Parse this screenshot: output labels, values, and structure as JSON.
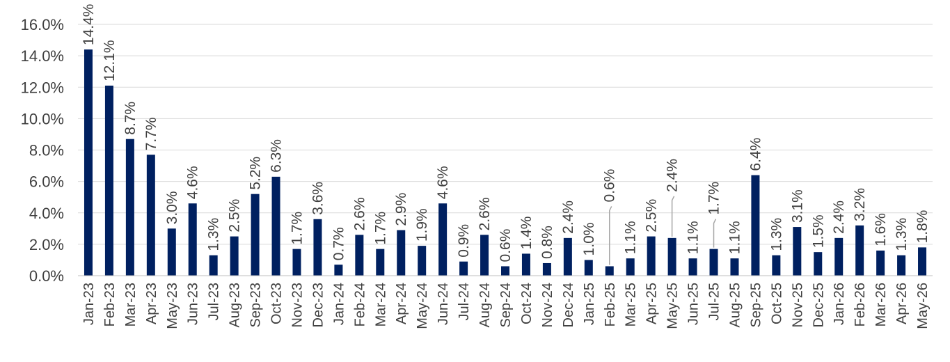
{
  "chart_data": {
    "type": "bar",
    "title": "",
    "xlabel": "",
    "ylabel": "",
    "ylim": [
      0,
      16
    ],
    "yticks": [
      "0.0%",
      "2.0%",
      "4.0%",
      "6.0%",
      "8.0%",
      "10.0%",
      "12.0%",
      "14.0%",
      "16.0%"
    ],
    "grid": true,
    "legend": "none",
    "bar_color": "#002060",
    "categories": [
      "Jan-23",
      "Feb-23",
      "Mar-23",
      "Apr-23",
      "May-23",
      "Jun-23",
      "Jul-23",
      "Aug-23",
      "Sep-23",
      "Oct-23",
      "Nov-23",
      "Dec-23",
      "Jan-24",
      "Feb-24",
      "Mar-24",
      "Apr-24",
      "May-24",
      "Jun-24",
      "Jul-24",
      "Aug-24",
      "Sep-24",
      "Oct-24",
      "Nov-24",
      "Dec-24",
      "Jan-25",
      "Feb-25",
      "Mar-25",
      "Apr-25",
      "May-25",
      "Jun-25",
      "Jul-25",
      "Aug-25",
      "Sep-25",
      "Oct-25",
      "Nov-25",
      "Dec-25",
      "Jan-26",
      "Feb-26",
      "Mar-26",
      "Apr-26",
      "May-26"
    ],
    "values": [
      14.4,
      12.1,
      8.7,
      7.7,
      3.0,
      4.6,
      1.3,
      2.5,
      5.2,
      6.3,
      1.7,
      3.6,
      0.7,
      2.6,
      1.7,
      2.9,
      1.9,
      4.6,
      0.9,
      2.6,
      0.6,
      1.4,
      0.8,
      2.4,
      1.0,
      0.6,
      1.1,
      2.5,
      2.4,
      1.1,
      1.7,
      1.1,
      6.4,
      1.3,
      3.1,
      1.5,
      2.4,
      3.2,
      1.6,
      1.3,
      1.8
    ],
    "data_labels": [
      "14.4%",
      "12.1%",
      "8.7%",
      "7.7%",
      "3.0%",
      "4.6%",
      "1.3%",
      "2.5%",
      "5.2%",
      "6.3%",
      "1.7%",
      "3.6%",
      "0.7%",
      "2.6%",
      "1.7%",
      "2.9%",
      "1.9%",
      "4.6%",
      "0.9%",
      "2.6%",
      "0.6%",
      "1.4%",
      "0.8%",
      "2.4%",
      "1.0%",
      "0.6%",
      "1.1%",
      "2.5%",
      "2.4%",
      "1.1%",
      "1.7%",
      "1.1%",
      "6.4%",
      "1.3%",
      "3.1%",
      "1.5%",
      "2.4%",
      "3.2%",
      "1.6%",
      "1.3%",
      "1.8%"
    ]
  }
}
